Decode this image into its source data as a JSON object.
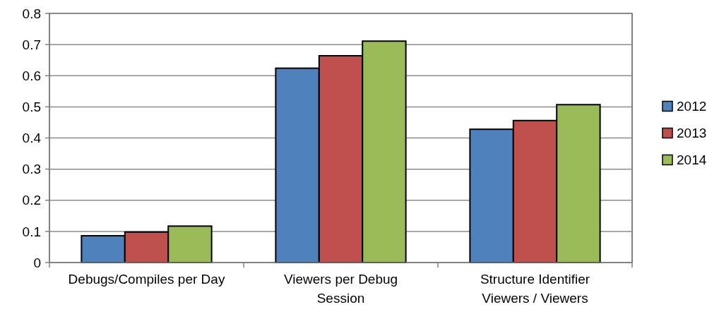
{
  "chart_data": {
    "type": "bar",
    "categories": [
      "Debugs/Compiles per Day",
      "Viewers per Debug Session",
      "Structure Identifier Viewers / Viewers"
    ],
    "series": [
      {
        "name": "2012",
        "color": "#4f81bd",
        "values": [
          0.086,
          0.624,
          0.428
        ]
      },
      {
        "name": "2013",
        "color": "#c0504d",
        "values": [
          0.098,
          0.664,
          0.456
        ]
      },
      {
        "name": "2014",
        "color": "#9bbb59",
        "values": [
          0.117,
          0.711,
          0.507
        ]
      }
    ],
    "ylim": [
      0,
      0.8
    ],
    "yticks": [
      0,
      0.1,
      0.2,
      0.3,
      0.4,
      0.5,
      0.6,
      0.7,
      0.8
    ],
    "grid": "y",
    "legend": "right"
  }
}
